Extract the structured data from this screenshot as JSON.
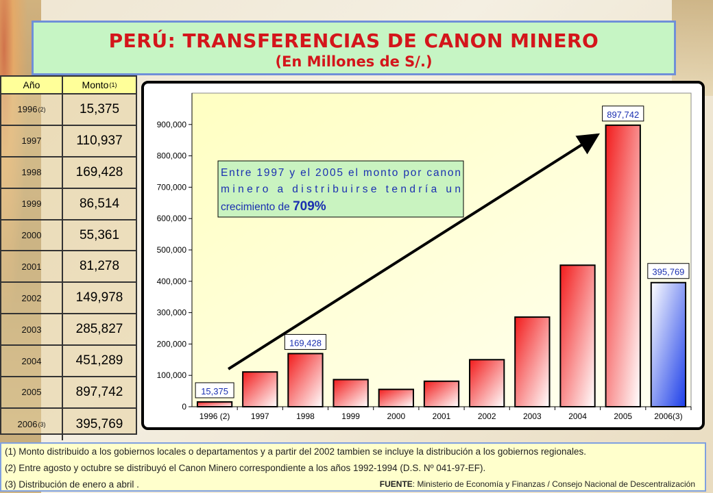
{
  "title": "PERÚ: TRANSFERENCIAS DE CANON MINERO",
  "subtitle": "(En Millones de S/.)",
  "table": {
    "header_year": "Año",
    "header_amount": "Monto",
    "header_amount_note": "(1)",
    "rows": [
      {
        "year": "1996",
        "note": "(2)",
        "amount": "15,375"
      },
      {
        "year": "1997",
        "note": "",
        "amount": "110,937"
      },
      {
        "year": "1998",
        "note": "",
        "amount": "169,428"
      },
      {
        "year": "1999",
        "note": "",
        "amount": "86,514"
      },
      {
        "year": "2000",
        "note": "",
        "amount": "55,361"
      },
      {
        "year": "2001",
        "note": "",
        "amount": "81,278"
      },
      {
        "year": "2002",
        "note": "",
        "amount": "149,978"
      },
      {
        "year": "2003",
        "note": "",
        "amount": "285,827"
      },
      {
        "year": "2004",
        "note": "",
        "amount": "451,289"
      },
      {
        "year": "2005",
        "note": "",
        "amount": "897,742"
      },
      {
        "year": "2006",
        "note": "(3)",
        "amount": "395,769"
      }
    ]
  },
  "chart_data": {
    "type": "bar",
    "categories": [
      "1996 (2)",
      "1997",
      "1998",
      "1999",
      "2000",
      "2001",
      "2002",
      "2003",
      "2004",
      "2005",
      "2006(3)"
    ],
    "values": [
      15375,
      110937,
      169428,
      86514,
      55361,
      81278,
      149978,
      285827,
      451289,
      897742,
      395769
    ],
    "ylim": [
      0,
      1000000
    ],
    "yticks": [
      0,
      100000,
      200000,
      300000,
      400000,
      500000,
      600000,
      700000,
      800000,
      900000
    ],
    "ytick_labels": [
      "0",
      "100,000",
      "200,000",
      "300,000",
      "400,000",
      "500,000",
      "600,000",
      "700,000",
      "800,000",
      "900,000"
    ],
    "data_labels": [
      {
        "index": 0,
        "text": "15,375"
      },
      {
        "index": 2,
        "text": "169,428"
      },
      {
        "index": 9,
        "text": "897,742"
      },
      {
        "index": 10,
        "text": "395,769"
      }
    ],
    "bar_colors": {
      "default": "#f21c1c",
      "highlight": "#1b3de8",
      "highlight_index": 10
    },
    "annotation": {
      "line1": "Entre 1997 y el 2005 el monto por canon",
      "line2": "minero a distribuirse tendría un",
      "line3_prefix": "crecimiento de ",
      "line3_value": "709%"
    },
    "trend_arrow": {
      "from_index": 0,
      "to_index": 9
    }
  },
  "footnotes": [
    "(1) Monto distribuido a los gobiernos locales o departamentos y a partir del 2002 tambien se incluye la distribución a los gobiernos regionales.",
    "(2) Entre agosto y octubre se distribuyó el Canon Minero correspondiente a los años 1992-1994 (D.S. Nº 041-97-EF).",
    "(3) Distribución de enero a abril ."
  ],
  "source_label": "FUENTE",
  "source_text": ": Ministerio de Economía y Finanzas  /  Consejo Nacional de Descentralización"
}
